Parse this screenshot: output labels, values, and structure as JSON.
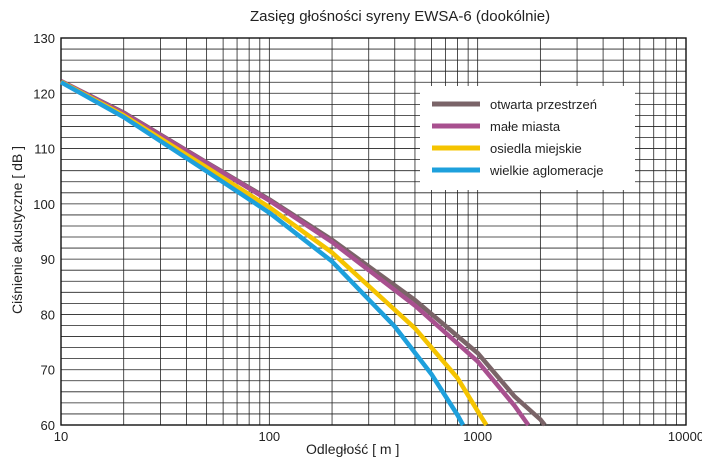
{
  "chart_data": {
    "type": "line",
    "title": "Zasięg głośności syreny EWSA-6  (dookólnie)",
    "xlabel": "Odległość  [ m ]",
    "ylabel": "Ciśnienie akustyczne [ dB ]",
    "xscale": "log",
    "xlim": [
      10,
      10000
    ],
    "ylim": [
      60,
      130
    ],
    "xticks": [
      10,
      100,
      1000,
      10000
    ],
    "yticks": [
      60,
      70,
      80,
      90,
      100,
      110,
      120,
      130
    ],
    "grid": true,
    "legend_position": "top-right",
    "series": [
      {
        "name": "otwarta przestrzeń",
        "color": "#7a6468",
        "x": [
          10,
          20,
          50,
          100,
          200,
          500,
          1000,
          1500,
          2000,
          2100
        ],
        "y": [
          122.2,
          116.5,
          107.5,
          100.8,
          93.5,
          82.6,
          73.0,
          65.2,
          61.0,
          60.0
        ]
      },
      {
        "name": "małe miasta",
        "color": "#a8508f",
        "x": [
          10,
          20,
          50,
          100,
          200,
          500,
          1000,
          1500,
          1750
        ],
        "y": [
          122.2,
          116.4,
          107.4,
          100.6,
          93.1,
          81.6,
          71.5,
          63.5,
          60.0
        ]
      },
      {
        "name": "osiedla miejskie",
        "color": "#f5c400",
        "x": [
          10,
          20,
          50,
          100,
          200,
          500,
          800,
          1000,
          1100
        ],
        "y": [
          122.1,
          116.0,
          106.6,
          99.4,
          91.2,
          77.5,
          68.5,
          62.5,
          60.0
        ]
      },
      {
        "name": "wielkie aglomeracje",
        "color": "#1ea0dc",
        "x": [
          10,
          20,
          50,
          100,
          200,
          400,
          600,
          800,
          850
        ],
        "y": [
          122.0,
          115.7,
          105.9,
          98.4,
          89.6,
          77.8,
          69.2,
          61.8,
          60.0
        ]
      }
    ]
  }
}
